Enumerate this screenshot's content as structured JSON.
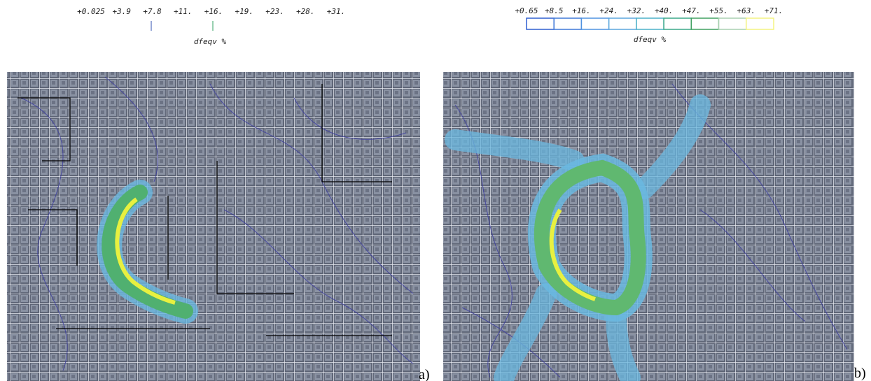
{
  "panels": [
    {
      "label": "a)",
      "colorbar": {
        "title": "dfeqv %",
        "ticks": [
          "+0.025",
          "+3.9",
          "+7.8",
          "+11.",
          "+16.",
          "+19.",
          "+23.",
          "+28.",
          "+31."
        ]
      }
    },
    {
      "label": "b)",
      "colorbar": {
        "title": "dfeqv %",
        "ticks": [
          "+0.65",
          "+8.5",
          "+16.",
          "+24.",
          "+32.",
          "+40.",
          "+47.",
          "+55.",
          "+63.",
          "+71."
        ]
      }
    }
  ]
}
